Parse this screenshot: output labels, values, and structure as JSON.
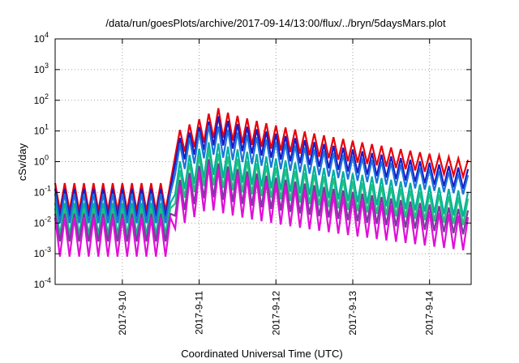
{
  "chart_data": {
    "type": "line",
    "title": "/data/run/goesPlots/archive/2017-09-14/13:00/flux/../bryn/5daysMars.plot",
    "xlabel": "Coordinated Universal Time (UTC)",
    "ylabel": "cSv/day",
    "y_scale": "log",
    "ylim": [
      0.0001,
      10000
    ],
    "y_ticks": [
      {
        "base": "10",
        "exp": "-4",
        "value": 0.0001
      },
      {
        "base": "10",
        "exp": "-3",
        "value": 0.001
      },
      {
        "base": "10",
        "exp": "-2",
        "value": 0.01
      },
      {
        "base": "10",
        "exp": "-1",
        "value": 0.1
      },
      {
        "base": "10",
        "exp": "0",
        "value": 1
      },
      {
        "base": "10",
        "exp": "1",
        "value": 10
      },
      {
        "base": "10",
        "exp": "2",
        "value": 100
      },
      {
        "base": "10",
        "exp": "3",
        "value": 1000
      },
      {
        "base": "10",
        "exp": "4",
        "value": 10000
      }
    ],
    "xlim": [
      "2017-09-09 03:00",
      "2017-09-14 13:00"
    ],
    "x_ticks": [
      "2017-9-10",
      "2017-9-11",
      "2017-9-12",
      "2017-9-13",
      "2017-9-14"
    ],
    "grid": true,
    "legend": "none",
    "oscillation_period_hours": 3,
    "event_onset": "2017-09-10 16:00",
    "series": [
      {
        "color": "#e8000b",
        "pre_event": {
          "peak": 0.2,
          "trough": 0.025
        },
        "event_peak": {
          "time": "2017-09-11 06:00",
          "peak": 55,
          "trough": 7
        },
        "end": {
          "peak": 1.1,
          "trough": 0.3
        }
      },
      {
        "color": "#1a1ac8",
        "pre_event": {
          "peak": 0.13,
          "trough": 0.016
        },
        "event_peak": {
          "time": "2017-09-11 06:00",
          "peak": 30,
          "trough": 4
        },
        "end": {
          "peak": 0.55,
          "trough": 0.12
        }
      },
      {
        "color": "#1e73dc",
        "pre_event": {
          "peak": 0.09,
          "trough": 0.01
        },
        "event_peak": {
          "time": "2017-09-11 04:00",
          "peak": 18,
          "trough": 1.8
        },
        "end": {
          "peak": 0.35,
          "trough": 0.08
        }
      },
      {
        "color": "#00b0a0",
        "pre_event": {
          "peak": 0.045,
          "trough": 0.004
        },
        "event_peak": {
          "time": "2017-09-11 04:00",
          "peak": 5,
          "trough": 0.4
        },
        "end": {
          "peak": 0.1,
          "trough": 0.015
        }
      },
      {
        "color": "#20c080",
        "pre_event": {
          "peak": 0.03,
          "trough": 0.003
        },
        "event_peak": {
          "time": "2017-09-11 03:00",
          "peak": 2.5,
          "trough": 0.2
        },
        "end": {
          "peak": 0.06,
          "trough": 0.008
        }
      },
      {
        "color": "#7a3aa0",
        "pre_event": {
          "peak": 0.02,
          "trough": 0.0025
        },
        "event_peak": {
          "time": "2017-09-11 03:00",
          "peak": 1.2,
          "trough": 0.08
        },
        "end": {
          "peak": 0.025,
          "trough": 0.004
        }
      },
      {
        "color": "#e010d8",
        "pre_event": {
          "peak": 0.015,
          "trough": 0.0008
        },
        "event_peak": {
          "time": "2017-09-11 03:00",
          "peak": 0.8,
          "trough": 0.03
        },
        "end": {
          "peak": 0.015,
          "trough": 0.0012
        }
      }
    ]
  }
}
